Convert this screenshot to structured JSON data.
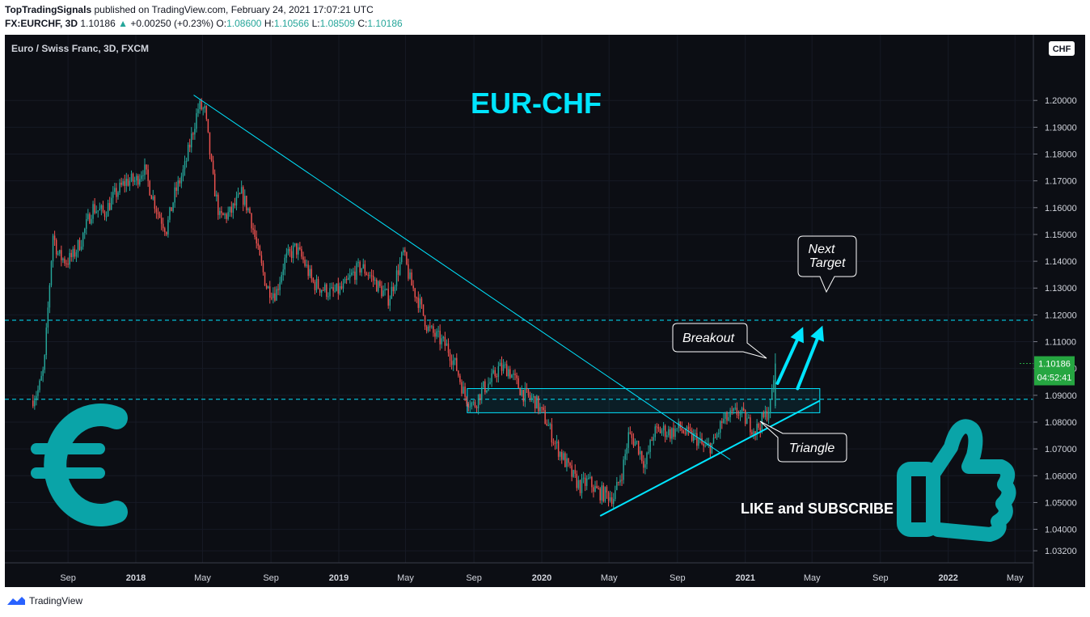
{
  "header": {
    "author": "TopTradingSignals",
    "published_text": "published on TradingView.com, February 24, 2021 17:07:21 UTC",
    "symbol_line": "FX:EURCHF, 3D",
    "last": "1.10186",
    "change": "+0.00250 (+0.23%)",
    "o_label": "O:",
    "o_value": "1.08600",
    "h_label": "H:",
    "h_value": "1.10566",
    "l_label": "L:",
    "l_value": "1.08509",
    "c_label": "C:",
    "c_value": "1.10186"
  },
  "footer": {
    "brand": "TradingView"
  },
  "colors": {
    "background": "#0c0e14",
    "up": "#26a69a",
    "down": "#ef5350",
    "cyan": "#00e5ff",
    "teal_icon": "#0aa4a8",
    "price_tag": "#26a641"
  },
  "chart_data": {
    "type": "candlestick",
    "instrument_label": "Euro / Swiss Franc, 3D, FXCM",
    "title": "EUR-CHF",
    "currency": "CHF",
    "y_ticks": [
      "1.20000",
      "1.19000",
      "1.18000",
      "1.17000",
      "1.16000",
      "1.15000",
      "1.14000",
      "1.13000",
      "1.12000",
      "1.11000",
      "1.10000",
      "1.09000",
      "1.08000",
      "1.07000",
      "1.06000",
      "1.05000",
      "1.04000",
      "1.03200"
    ],
    "y_tick_values": [
      1.2,
      1.19,
      1.18,
      1.17,
      1.16,
      1.15,
      1.14,
      1.13,
      1.12,
      1.11,
      1.1,
      1.09,
      1.08,
      1.07,
      1.06,
      1.05,
      1.04,
      1.032
    ],
    "x_ticks": [
      "Sep",
      "2018",
      "May",
      "Sep",
      "2019",
      "May",
      "Sep",
      "2020",
      "May",
      "Sep",
      "2021",
      "May",
      "Sep",
      "2022",
      "May"
    ],
    "x_tick_dates": [
      "2017-09",
      "2018-01",
      "2018-05",
      "2018-09",
      "2019-01",
      "2019-05",
      "2019-09",
      "2020-01",
      "2020-05",
      "2020-09",
      "2021-01",
      "2021-05",
      "2021-09",
      "2022-01",
      "2022-05"
    ],
    "ylim": [
      1.0275,
      1.2245
    ],
    "last_price": "1.10186",
    "countdown": "04:52:41",
    "price_path": [
      [
        "2017-06-27",
        1.088
      ],
      [
        "2017-07-10",
        1.092
      ],
      [
        "2017-07-20",
        1.1
      ],
      [
        "2017-07-31",
        1.135
      ],
      [
        "2017-08-05",
        1.15
      ],
      [
        "2017-08-15",
        1.142
      ],
      [
        "2017-08-30",
        1.14
      ],
      [
        "2017-09-10",
        1.142
      ],
      [
        "2017-09-25",
        1.148
      ],
      [
        "2017-10-15",
        1.16
      ],
      [
        "2017-11-05",
        1.158
      ],
      [
        "2017-11-25",
        1.165
      ],
      [
        "2017-12-15",
        1.17
      ],
      [
        "2018-01-01",
        1.17
      ],
      [
        "2018-01-15",
        1.175
      ],
      [
        "2018-01-25",
        1.168
      ],
      [
        "2018-02-10",
        1.158
      ],
      [
        "2018-02-25",
        1.152
      ],
      [
        "2018-03-12",
        1.165
      ],
      [
        "2018-03-30",
        1.175
      ],
      [
        "2018-04-15",
        1.19
      ],
      [
        "2018-04-24",
        1.198
      ],
      [
        "2018-05-05",
        1.196
      ],
      [
        "2018-05-20",
        1.17
      ],
      [
        "2018-06-01",
        1.156
      ],
      [
        "2018-06-20",
        1.158
      ],
      [
        "2018-07-10",
        1.165
      ],
      [
        "2018-07-25",
        1.158
      ],
      [
        "2018-08-10",
        1.142
      ],
      [
        "2018-08-25",
        1.13
      ],
      [
        "2018-09-10",
        1.128
      ],
      [
        "2018-09-25",
        1.14
      ],
      [
        "2018-10-15",
        1.145
      ],
      [
        "2018-10-30",
        1.14
      ],
      [
        "2018-11-15",
        1.132
      ],
      [
        "2018-12-01",
        1.13
      ],
      [
        "2018-12-20",
        1.128
      ],
      [
        "2019-01-10",
        1.13
      ],
      [
        "2019-01-25",
        1.135
      ],
      [
        "2019-02-10",
        1.138
      ],
      [
        "2019-02-25",
        1.135
      ],
      [
        "2019-03-15",
        1.13
      ],
      [
        "2019-04-01",
        1.126
      ],
      [
        "2019-04-15",
        1.135
      ],
      [
        "2019-04-27",
        1.143
      ],
      [
        "2019-05-10",
        1.132
      ],
      [
        "2019-05-25",
        1.125
      ],
      [
        "2019-06-10",
        1.115
      ],
      [
        "2019-06-25",
        1.112
      ],
      [
        "2019-07-15",
        1.108
      ],
      [
        "2019-08-01",
        1.1
      ],
      [
        "2019-08-15",
        1.09
      ],
      [
        "2019-09-01",
        1.086
      ],
      [
        "2019-09-15",
        1.092
      ],
      [
        "2019-10-01",
        1.095
      ],
      [
        "2019-10-15",
        1.1
      ],
      [
        "2019-11-01",
        1.1
      ],
      [
        "2019-11-15",
        1.095
      ],
      [
        "2019-12-01",
        1.09
      ],
      [
        "2019-12-20",
        1.088
      ],
      [
        "2020-01-10",
        1.08
      ],
      [
        "2020-01-25",
        1.072
      ],
      [
        "2020-02-10",
        1.066
      ],
      [
        "2020-02-25",
        1.06
      ],
      [
        "2020-03-10",
        1.056
      ],
      [
        "2020-03-25",
        1.058
      ],
      [
        "2020-04-10",
        1.054
      ],
      [
        "2020-04-25",
        1.053
      ],
      [
        "2020-05-10",
        1.052
      ],
      [
        "2020-05-25",
        1.062
      ],
      [
        "2020-06-05",
        1.075
      ],
      [
        "2020-06-20",
        1.072
      ],
      [
        "2020-07-05",
        1.064
      ],
      [
        "2020-07-20",
        1.076
      ],
      [
        "2020-08-05",
        1.077
      ],
      [
        "2020-08-20",
        1.076
      ],
      [
        "2020-09-05",
        1.078
      ],
      [
        "2020-09-20",
        1.075
      ],
      [
        "2020-10-05",
        1.074
      ],
      [
        "2020-10-20",
        1.07
      ],
      [
        "2020-11-05",
        1.072
      ],
      [
        "2020-11-20",
        1.08
      ],
      [
        "2020-12-05",
        1.082
      ],
      [
        "2020-12-20",
        1.084
      ],
      [
        "2021-01-05",
        1.08
      ],
      [
        "2021-01-20",
        1.077
      ],
      [
        "2021-02-05",
        1.082
      ],
      [
        "2021-02-15",
        1.086
      ],
      [
        "2021-02-24",
        1.10186
      ]
    ],
    "levels": [
      {
        "label": "resistance",
        "y": 1.118
      },
      {
        "label": "support",
        "y": 1.0885
      }
    ],
    "zone": {
      "x0": "2019-08-20",
      "x1": "2021-05-15",
      "y0": 1.0835,
      "y1": 1.0925
    },
    "lines": [
      {
        "name": "downtrend",
        "x0": "2018-04-15",
        "y0": 1.202,
        "x1": "2020-12-05",
        "y1": 1.066
      },
      {
        "name": "uptrend",
        "x0": "2020-04-15",
        "y0": 1.045,
        "x1": "2021-05-15",
        "y1": 1.088
      }
    ],
    "arrows": [
      {
        "x0": "2021-02-28",
        "y0": 1.0945,
        "x1": "2021-04-15",
        "y1": 1.1155
      },
      {
        "x0": "2021-04-05",
        "y0": 1.0925,
        "x1": "2021-05-20",
        "y1": 1.116
      }
    ],
    "annotations": [
      {
        "text": "Breakout"
      },
      {
        "text": "Triangle"
      },
      {
        "line1": "Next",
        "line2": "Target"
      }
    ],
    "promo_text": "LIKE and SUBSCRIBE"
  }
}
